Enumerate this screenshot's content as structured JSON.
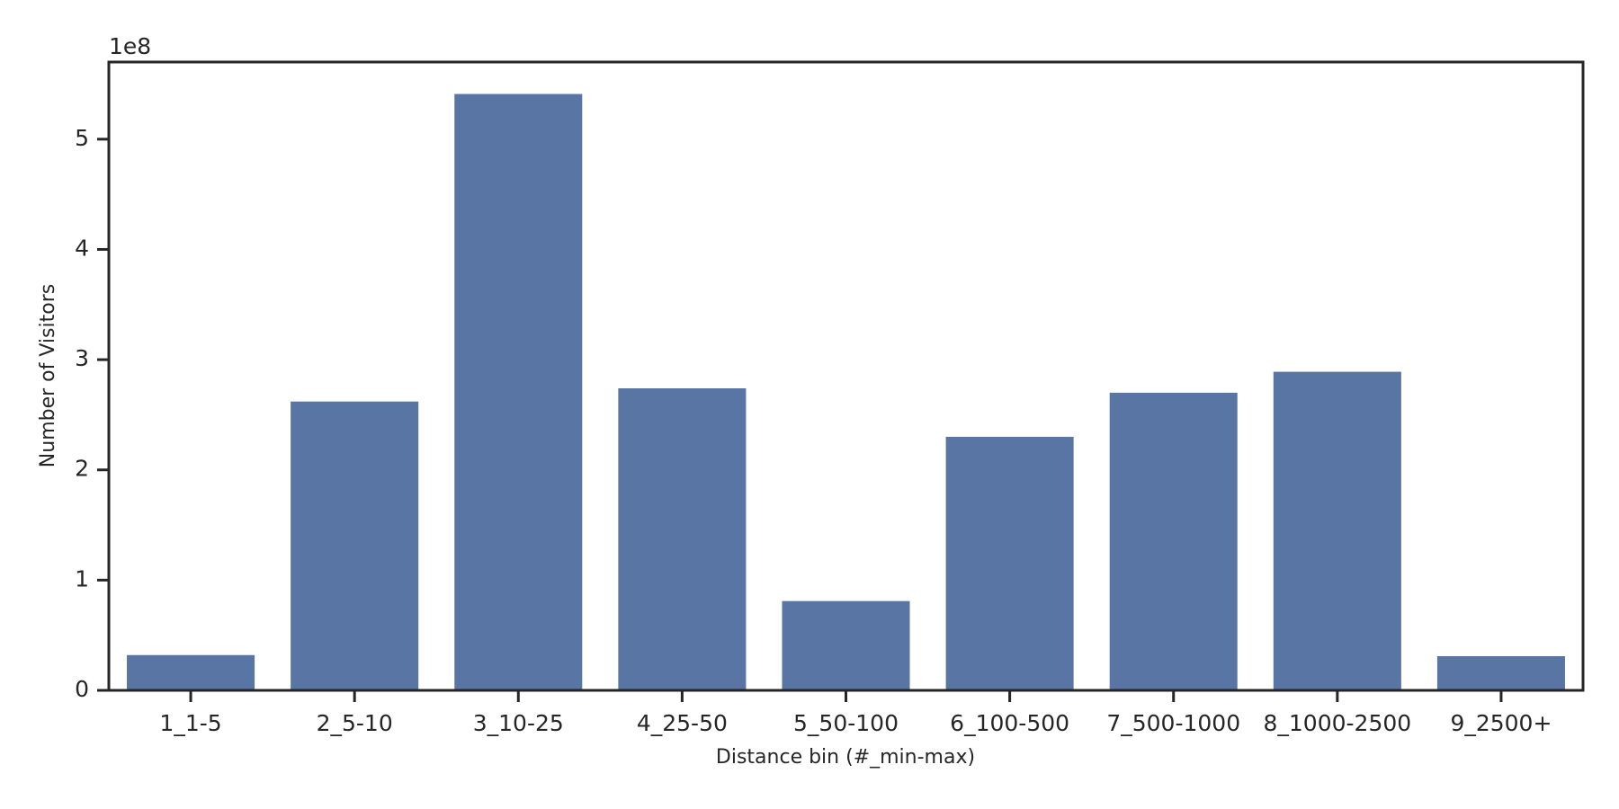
{
  "chart_data": {
    "type": "bar",
    "x_label": "Distance bin (#_min-max)",
    "y_label": "Number of Visitors",
    "y_offset_label": "1e8",
    "categories": [
      "1_1-5",
      "2_5-10",
      "3_10-25",
      "4_25-50",
      "5_50-100",
      "6_100-500",
      "7_500-1000",
      "8_1000-2500",
      "9_2500+"
    ],
    "values": [
      0.32,
      2.62,
      5.41,
      2.74,
      0.81,
      2.3,
      2.7,
      2.89,
      0.31
    ],
    "color": "#5975a4",
    "ylim": [
      0,
      5.7
    ],
    "yticks": [
      0,
      1,
      2,
      3,
      4,
      5
    ],
    "grid": false
  }
}
